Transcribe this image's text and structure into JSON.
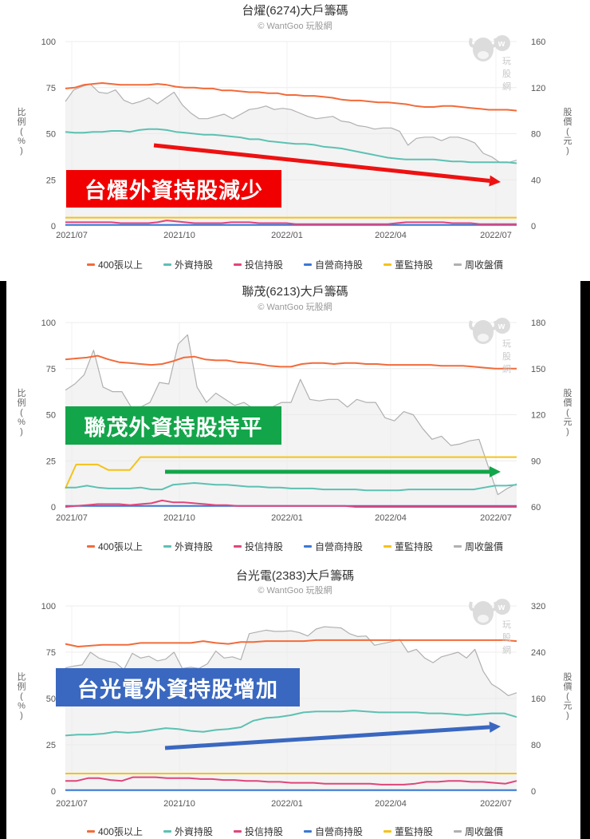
{
  "legend": [
    {
      "label": "400張以上",
      "color": "#f26b3a"
    },
    {
      "label": "外資持股",
      "color": "#5cc1b3"
    },
    {
      "label": "投信持股",
      "color": "#e0457b"
    },
    {
      "label": "自營商持股",
      "color": "#3a78d6"
    },
    {
      "label": "董監持股",
      "color": "#f5c218"
    },
    {
      "label": "周收盤價",
      "color": "#b0b0b0"
    }
  ],
  "axis": {
    "left_title": "比例(%)",
    "right_title": "股價(元)",
    "x_ticks": [
      "2021/07",
      "2021/10",
      "2022/01",
      "2022/04",
      "2022/07"
    ]
  },
  "watermark": "玩股網",
  "charts": [
    {
      "title": "台燿(6274)大戶籌碼",
      "subtitle": "© WantGoo 玩股網",
      "banner": {
        "text": "台燿外資持股減少",
        "color": "#f00000"
      },
      "arrow_color": "#ee1111",
      "right_ticks": [
        "0",
        "40",
        "80",
        "120",
        "160"
      ]
    },
    {
      "title": "聯茂(6213)大戶籌碼",
      "subtitle": "© WantGoo 玩股網",
      "banner": {
        "text": "聯茂外資持股持平",
        "color": "#13a54a"
      },
      "arrow_color": "#13a54a",
      "right_ticks": [
        "60",
        "90",
        "120",
        "150",
        "180"
      ]
    },
    {
      "title": "台光電(2383)大戶籌碼",
      "subtitle": "© WantGoo 玩股網",
      "banner": {
        "text": "台光電外資持股增加",
        "color": "#3a68c0"
      },
      "arrow_color": "#3a68c0",
      "right_ticks": [
        "0",
        "80",
        "160",
        "240",
        "320"
      ]
    }
  ],
  "chart_data": [
    {
      "type": "line",
      "title": "台燿(6274)大戶籌碼",
      "subtitle": "© WantGoo 玩股網",
      "xlabel": "",
      "ylabel": "比例(%)",
      "y2label": "股價(元)",
      "ylim": [
        0,
        100
      ],
      "y2lim": [
        0,
        160
      ],
      "x_ticks": [
        "2021/07",
        "2021/10",
        "2022/01",
        "2022/04",
        "2022/07"
      ],
      "annotation": "台燿外資持股減少",
      "series": [
        {
          "name": "400張以上",
          "axis": "left",
          "values": [
            74.5,
            75,
            76.5,
            77,
            77.5,
            77,
            76.5,
            76.5,
            76.5,
            76.5,
            77,
            76.5,
            75.5,
            75,
            75,
            74.5,
            74.5,
            73.5,
            73.5,
            73,
            72.5,
            72.5,
            72,
            72,
            71,
            71,
            70.5,
            70.5,
            70,
            69.5,
            68.5,
            68,
            68,
            67.5,
            67,
            67,
            66.5,
            66,
            65,
            64.5,
            64.5,
            65,
            65,
            64.5,
            64,
            63.5,
            63,
            63,
            63,
            62.5
          ]
        },
        {
          "name": "外資持股",
          "axis": "left",
          "values": [
            51,
            50.5,
            50.5,
            51,
            51,
            51.5,
            51.5,
            51,
            52,
            52.5,
            52.5,
            52,
            51,
            50.5,
            50,
            49.5,
            49.5,
            49,
            48.5,
            48,
            47,
            47,
            46,
            45.5,
            45,
            44.5,
            44.5,
            44,
            43,
            42.5,
            42,
            41,
            40,
            39,
            38,
            37,
            36.5,
            36,
            36,
            36,
            36,
            35.5,
            35,
            35,
            34.5,
            34.5,
            34.5,
            34.5,
            34.5,
            34
          ]
        },
        {
          "name": "投信持股",
          "axis": "left",
          "values": [
            2,
            2,
            2,
            2,
            2,
            2,
            1.5,
            1.5,
            1.5,
            1.5,
            2,
            3,
            2.5,
            2,
            1.5,
            1.5,
            1.5,
            1.5,
            2,
            2,
            2,
            1.5,
            1.5,
            1.5,
            1.5,
            1,
            1,
            1,
            1,
            1,
            1,
            1,
            1,
            1,
            1,
            1,
            1.5,
            2,
            2,
            2,
            2,
            2,
            1.5,
            1.5,
            1.5,
            1,
            1,
            1,
            1,
            1
          ]
        },
        {
          "name": "自營商持股",
          "axis": "left",
          "values": [
            0.5,
            0.5,
            0.5,
            0.5,
            0.5,
            0.5,
            0.5,
            0.5,
            0.5,
            0.5,
            0.5,
            0.5,
            0.5,
            0.5,
            0.5,
            0.5,
            0.5,
            0.5,
            0.5,
            0.5,
            0.5,
            0.5,
            0.5,
            0.5,
            0.5,
            0.5,
            0.5,
            0.5,
            0.5,
            0.5,
            0.5,
            0.5,
            0.5,
            0.5,
            0.5,
            0.5,
            0.5,
            0.5,
            0.5,
            0.5,
            0.5,
            0.5,
            0.5,
            0.5,
            0.5,
            0.5,
            0.5,
            0.5,
            0.5,
            0.5
          ]
        },
        {
          "name": "董監持股",
          "axis": "left",
          "values": [
            4.5,
            4.5,
            4.5,
            4.5,
            4.5,
            4.5,
            4.5,
            4.5,
            4.5,
            4.5,
            4.5,
            4.5,
            4.5,
            4.5,
            4.5,
            4.5,
            4.5,
            4.5,
            4.5,
            4.5,
            4.5,
            4.5,
            4.5,
            4.5,
            4.5,
            4.5,
            4.5,
            4.5,
            4.5,
            4.5,
            4.5,
            4.5,
            4.5,
            4.5,
            4.5,
            4.5,
            4.5,
            4.5,
            4.5,
            4.5,
            4.5,
            4.5,
            4.5,
            4.5,
            4.5,
            4.5,
            4.5,
            4.5,
            4.5,
            4.5
          ]
        },
        {
          "name": "周收盤價",
          "axis": "right",
          "values": [
            108,
            118,
            121,
            123,
            116,
            115,
            118,
            109,
            106,
            108,
            111,
            106,
            111,
            116,
            105,
            98,
            93,
            93,
            95,
            97,
            93,
            97,
            101,
            102,
            104,
            101,
            102,
            101,
            98,
            95,
            93,
            94,
            95,
            91,
            90,
            87,
            86,
            84,
            85,
            85,
            82,
            70,
            76,
            77,
            77,
            74,
            77,
            77,
            75,
            72,
            63,
            60,
            55,
            55,
            57
          ]
        }
      ]
    },
    {
      "type": "line",
      "title": "聯茂(6213)大戶籌碼",
      "subtitle": "© WantGoo 玩股網",
      "xlabel": "",
      "ylabel": "比例(%)",
      "y2label": "股價(元)",
      "ylim": [
        0,
        100
      ],
      "y2lim": [
        60,
        180
      ],
      "x_ticks": [
        "2021/07",
        "2021/10",
        "2022/01",
        "2022/04",
        "2022/07"
      ],
      "annotation": "聯茂外資持股持平",
      "series": [
        {
          "name": "400張以上",
          "axis": "left",
          "values": [
            80,
            80.5,
            81,
            82,
            80,
            78.5,
            78,
            77.5,
            77,
            77.5,
            79,
            81,
            81.5,
            80,
            79.5,
            79.5,
            78.5,
            78,
            77.5,
            76.5,
            76,
            76,
            77.5,
            78,
            78,
            77.5,
            78,
            78,
            77.5,
            77.5,
            77,
            77,
            77,
            77,
            77,
            76.5,
            76.5,
            76.5,
            76,
            75.5,
            75,
            75,
            75
          ]
        },
        {
          "name": "外資持股",
          "axis": "left",
          "values": [
            10.5,
            10.5,
            11.5,
            10.5,
            10,
            10,
            10,
            10.5,
            9.5,
            9.5,
            12,
            12.5,
            13,
            12.5,
            12,
            12,
            11.5,
            11,
            11,
            10.5,
            10.5,
            10,
            10,
            10,
            9.5,
            9.5,
            9.5,
            9.5,
            9,
            9,
            9,
            9,
            9.5,
            9.5,
            9.5,
            9.5,
            9.5,
            9.5,
            9.5,
            10.5,
            11.5,
            11.5,
            12
          ]
        },
        {
          "name": "投信持股",
          "axis": "left",
          "values": [
            0,
            0.5,
            1,
            1.5,
            1.5,
            1.5,
            1,
            1.5,
            2,
            3.5,
            2.5,
            2.5,
            2,
            1.5,
            1,
            1,
            0.5,
            0.5,
            0.5,
            0.5,
            0.5,
            0.5,
            0.5,
            0.5,
            0.5,
            0.5,
            0.5,
            0,
            0,
            0,
            0,
            0,
            0,
            0,
            0,
            0,
            0,
            0,
            0,
            0,
            0,
            0,
            0
          ]
        },
        {
          "name": "自營商持股",
          "axis": "left",
          "values": [
            0.5,
            0.5,
            0.5,
            0.5,
            0.5,
            0.5,
            0.5,
            0.5,
            0.5,
            0.5,
            0.5,
            0.5,
            0.5,
            0.5,
            0.5,
            0.5,
            0.5,
            0.5,
            0.5,
            0.5,
            0.5,
            0.5,
            0.5,
            0.5,
            0.5,
            0.5,
            0.5,
            0.5,
            0.5,
            0.5,
            0.5,
            0.5,
            0.5,
            0.5,
            0.5,
            0.5,
            0.5,
            0.5,
            0.5,
            0.5,
            0.5,
            0.5,
            0.5
          ]
        },
        {
          "name": "董監持股",
          "axis": "left",
          "values": [
            10,
            23,
            23,
            23,
            20,
            20,
            20,
            27,
            27,
            27,
            27,
            27,
            27,
            27,
            27,
            27,
            27,
            27,
            27,
            27,
            27,
            27,
            27,
            27,
            27,
            27,
            27,
            27,
            27,
            27,
            27,
            27,
            27,
            27,
            27,
            27,
            27,
            27,
            27,
            27,
            27,
            27,
            27
          ]
        },
        {
          "name": "周收盤價",
          "axis": "right",
          "values": [
            136,
            140,
            146,
            162,
            138,
            135,
            135,
            125,
            125,
            128,
            141,
            140,
            166,
            172,
            138,
            128,
            134,
            130,
            126,
            128,
            124,
            125,
            125,
            128,
            128,
            143,
            130,
            129,
            130,
            130,
            125,
            130,
            128,
            128,
            118,
            116,
            122,
            120,
            111,
            104,
            106,
            100,
            101,
            103,
            104,
            86,
            68,
            72,
            75
          ]
        }
      ]
    },
    {
      "type": "line",
      "title": "台光電(2383)大戶籌碼",
      "subtitle": "© WantGoo 玩股網",
      "xlabel": "",
      "ylabel": "比例(%)",
      "y2label": "股價(元)",
      "ylim": [
        0,
        100
      ],
      "y2lim": [
        0,
        320
      ],
      "x_ticks": [
        "2021/07",
        "2021/10",
        "2022/01",
        "2022/04",
        "2022/07"
      ],
      "annotation": "台光電外資持股增加",
      "series": [
        {
          "name": "400張以上",
          "axis": "left",
          "values": [
            79.5,
            78,
            78.5,
            79,
            79,
            79,
            80,
            80,
            80,
            80,
            80,
            81,
            80,
            79.5,
            80.5,
            80.5,
            81,
            81,
            81,
            81,
            81.5,
            81.5,
            81.5,
            81.5,
            81.5,
            81.5,
            81.5,
            81.5,
            81.5,
            81.5,
            81.5,
            81.5,
            81.5,
            81.5,
            81.5,
            81.5,
            81
          ]
        },
        {
          "name": "外資持股",
          "axis": "left",
          "values": [
            30,
            30.5,
            30.5,
            31,
            32,
            31.5,
            32,
            33,
            34,
            33.5,
            32.5,
            32,
            33,
            33.5,
            34.5,
            38,
            39.5,
            40,
            41,
            42.5,
            43,
            43,
            43,
            43.5,
            43,
            42.5,
            42.5,
            42.5,
            42.5,
            42,
            42,
            41.5,
            41,
            41.5,
            42,
            42,
            40
          ]
        },
        {
          "name": "投信持股",
          "axis": "left",
          "values": [
            5.5,
            5.5,
            7,
            7,
            6,
            5.5,
            7.5,
            7.5,
            7.5,
            7,
            7,
            7,
            6.5,
            6.5,
            6,
            6,
            5.5,
            5.5,
            5,
            5,
            4.5,
            4.5,
            4.5,
            4,
            4,
            4,
            4,
            4,
            3.5,
            3.5,
            3.5,
            4,
            5,
            5,
            5.5,
            5.5,
            5,
            5,
            4.5,
            4,
            5.5
          ]
        },
        {
          "name": "自營商持股",
          "axis": "left",
          "values": [
            0.5,
            0.5,
            0.5,
            0.5,
            0.5,
            0.5,
            0.5,
            0.5,
            0.5,
            0.5,
            0.5,
            0.5,
            0.5,
            0.5,
            0.5,
            0.5,
            0.5,
            0.5,
            0.5,
            0.5,
            0.5,
            0.5,
            0.5,
            0.5,
            0.5,
            0.5,
            0.5,
            0.5,
            0.5,
            0.5,
            0.5,
            0.5,
            0.5,
            0.5,
            0.5,
            0.5,
            0.5
          ]
        },
        {
          "name": "董監持股",
          "axis": "left",
          "values": [
            9.5,
            9.5,
            9.5,
            9.5,
            9.5,
            9.5,
            9.5,
            9.5,
            9.5,
            9.5,
            9.5,
            9.5,
            9.5,
            9.5,
            9.5,
            9.5,
            9.5,
            9.5,
            9.5,
            9.5,
            9.5,
            9.5,
            9.5,
            9.5,
            9.5,
            9.5,
            9.5,
            9.5,
            9.5,
            9.5,
            9.5,
            9.5,
            9.5,
            9.5,
            9.5,
            9.5,
            9.5
          ]
        },
        {
          "name": "周收盤價",
          "axis": "right",
          "values": [
            213,
            216,
            218,
            240,
            230,
            225,
            222,
            210,
            238,
            230,
            233,
            225,
            228,
            240,
            212,
            214,
            212,
            220,
            242,
            230,
            232,
            227,
            272,
            275,
            278,
            276,
            276,
            277,
            274,
            268,
            280,
            284,
            283,
            282,
            272,
            267,
            268,
            252,
            255,
            258,
            262,
            240,
            245,
            230,
            222,
            232,
            236,
            240,
            230,
            245,
            207,
            185,
            176,
            165,
            170
          ]
        }
      ]
    }
  ]
}
